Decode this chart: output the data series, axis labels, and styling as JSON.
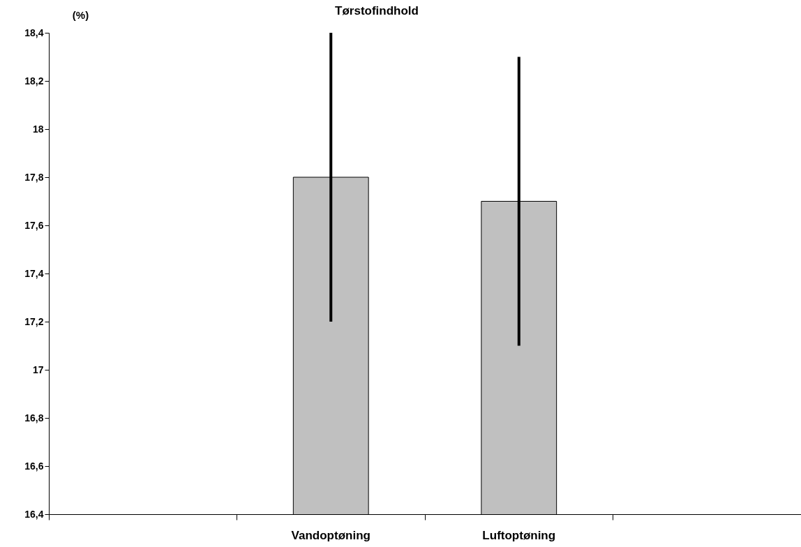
{
  "chart_data": {
    "type": "bar",
    "title": "Tørstofindhold",
    "ylabel": "(%)",
    "categories": [
      null,
      "Vandoptøning",
      "Luftoptøning",
      null
    ],
    "values": [
      null,
      17.8,
      17.7,
      null
    ],
    "errors": [
      null,
      0.6,
      0.6,
      null
    ],
    "color": "#c0c0c0",
    "ylim": [
      16.4,
      18.4
    ],
    "yticks": [
      {
        "value": 16.4,
        "label": "16,4"
      },
      {
        "value": 16.6,
        "label": "16,6"
      },
      {
        "value": 16.8,
        "label": "16,8"
      },
      17,
      {
        "value": 17.2,
        "label": "17,2"
      },
      {
        "value": 17.4,
        "label": "17,4"
      },
      {
        "value": 17.6,
        "label": "17,6"
      },
      {
        "value": 17.8,
        "label": "17,8"
      },
      18,
      {
        "value": 18.2,
        "label": "18,2"
      },
      {
        "value": 18.4,
        "label": "18,4"
      }
    ],
    "grid": false
  }
}
